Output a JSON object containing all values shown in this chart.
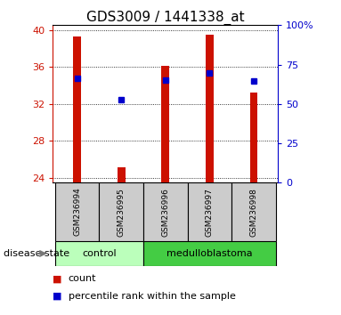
{
  "title": "GDS3009 / 1441338_at",
  "samples": [
    "GSM236994",
    "GSM236995",
    "GSM236996",
    "GSM236997",
    "GSM236998"
  ],
  "bar_values": [
    39.3,
    25.2,
    36.1,
    39.5,
    33.2
  ],
  "percentile_values": [
    34.8,
    32.5,
    34.6,
    35.3,
    34.5
  ],
  "bar_bottom": 23.5,
  "ylim_left": [
    23.5,
    40.5
  ],
  "yticks_left": [
    24,
    28,
    32,
    36,
    40
  ],
  "ylim_right": [
    0,
    100
  ],
  "yticks_right": [
    0,
    25,
    50,
    75,
    100
  ],
  "ytick_labels_right": [
    "0",
    "25",
    "50",
    "75",
    "100%"
  ],
  "bar_color": "#cc1100",
  "percentile_color": "#0000cc",
  "grid_color": "#000000",
  "groups": [
    {
      "label": "control",
      "indices": [
        0,
        1
      ],
      "color": "#bbffbb"
    },
    {
      "label": "medulloblastoma",
      "indices": [
        2,
        3,
        4
      ],
      "color": "#44cc44"
    }
  ],
  "legend_items": [
    {
      "color": "#cc1100",
      "label": "count"
    },
    {
      "color": "#0000cc",
      "label": "percentile rank within the sample"
    }
  ],
  "bar_width": 0.5,
  "title_fontsize": 11,
  "tick_fontsize": 8,
  "sample_fontsize": 6.5,
  "group_fontsize": 8,
  "legend_fontsize": 8,
  "label_bg_color": "#cccccc",
  "disease_state_label": "disease state"
}
